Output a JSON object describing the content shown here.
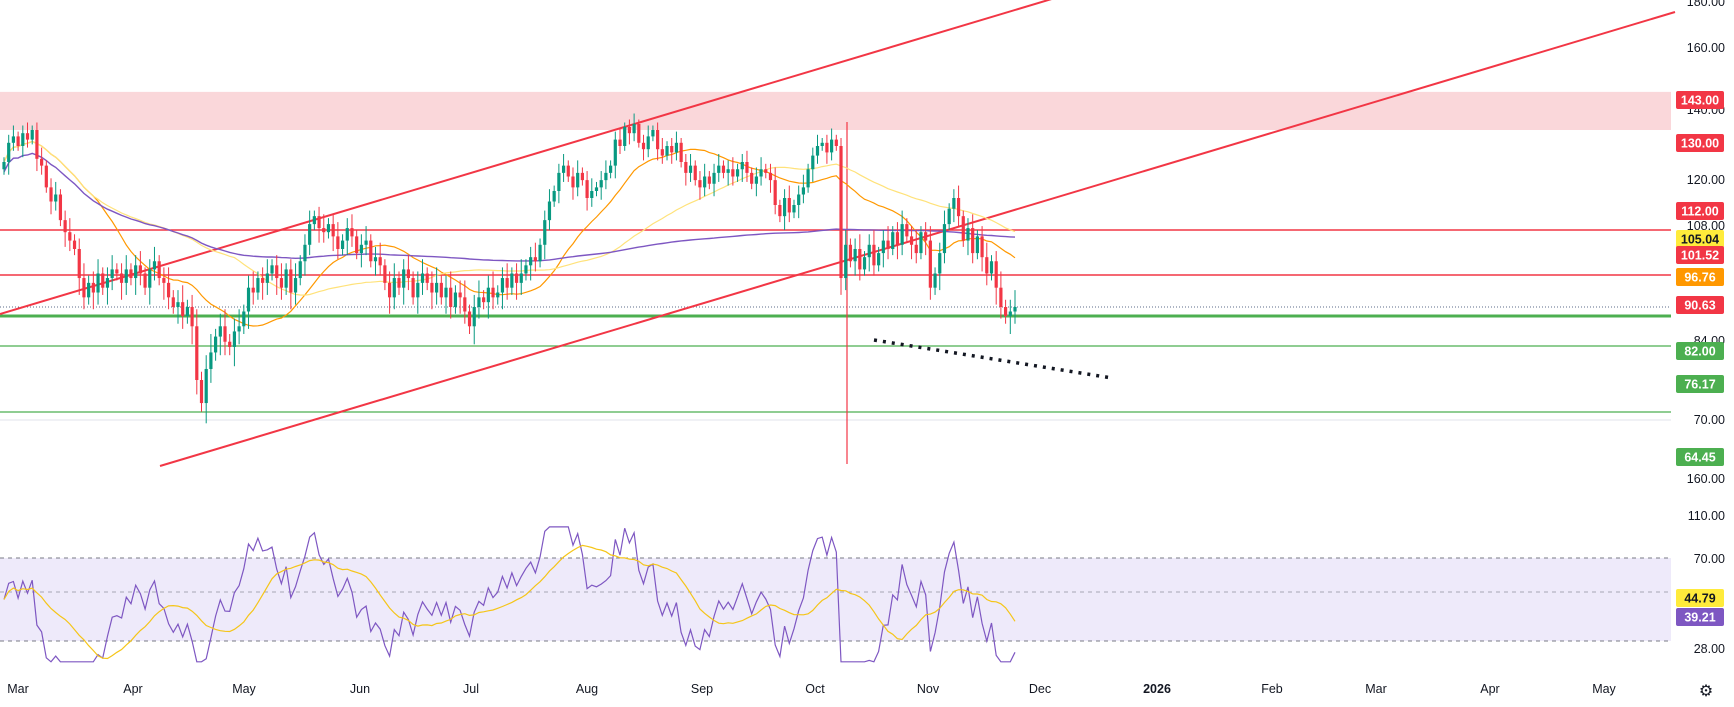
{
  "chart_data": {
    "type": "candlestick",
    "price_panel": {
      "axis_ticks": [
        "180.00",
        "160.00",
        "140.00",
        "120.00",
        "108.00",
        "84.00",
        "70.00"
      ],
      "level_badges": [
        {
          "label": "143.00",
          "color": "#f23645"
        },
        {
          "label": "130.00",
          "color": "#f23645"
        },
        {
          "label": "112.00",
          "color": "#f23645"
        },
        {
          "label": "105.04",
          "color": "#ffeb3b"
        },
        {
          "label": "101.52",
          "color": "#f23645"
        },
        {
          "label": "96.76",
          "color": "#ff9800"
        },
        {
          "label": "90.63",
          "color": "#f23645"
        },
        {
          "label": "82.00",
          "color": "#4caf50"
        },
        {
          "label": "76.17",
          "color": "#4caf50"
        },
        {
          "label": "64.45",
          "color": "#4caf50"
        }
      ]
    },
    "rsi_panel": {
      "axis_ticks": [
        "160.00",
        "110.00",
        "70.00",
        "28.00"
      ],
      "value_badges": [
        {
          "label": "44.79",
          "color": "#ffeb3b"
        },
        {
          "label": "39.21",
          "color": "#7e57c2"
        }
      ]
    },
    "x_ticks": [
      "Mar",
      "Apr",
      "May",
      "Jun",
      "Jul",
      "Aug",
      "Sep",
      "Oct",
      "Nov",
      "Dec",
      "2026",
      "Feb",
      "Mar",
      "Apr",
      "May"
    ],
    "colors": {
      "up": "#089981",
      "down": "#f23645",
      "resistance": "#f23645",
      "support": "#4caf50",
      "zone": "#f9d0d4",
      "ma_orange": "#ff9800",
      "ma_yellow": "#ffe27a",
      "ma_purple": "#7e57c2",
      "rsi_band": "#eeeafa"
    },
    "closes": [
      120,
      126,
      128,
      125,
      129,
      127,
      130,
      121,
      119,
      113,
      109,
      111,
      104,
      101,
      99,
      97,
      90,
      86,
      89,
      87,
      91,
      88,
      90,
      92,
      91,
      89,
      92,
      90,
      93,
      91,
      88,
      92,
      94,
      90,
      89,
      86,
      84,
      85,
      82,
      84,
      80,
      70,
      66,
      72,
      75,
      78,
      80,
      77,
      76,
      79,
      80,
      83,
      88,
      87,
      90,
      89,
      91,
      93,
      90,
      88,
      92,
      87,
      90,
      94,
      98,
      103,
      105,
      102,
      101,
      103,
      100,
      97,
      99,
      102,
      100,
      96,
      98,
      99,
      94,
      95,
      93,
      89,
      86,
      90,
      88,
      92,
      90,
      86,
      89,
      91,
      89,
      87,
      89,
      86,
      88,
      84,
      87,
      86,
      83,
      80,
      84,
      86,
      85,
      88,
      86,
      87,
      90,
      88,
      91,
      89,
      91,
      93,
      95,
      94,
      98,
      104,
      109,
      112,
      117,
      119,
      116,
      113,
      117,
      115,
      110,
      112,
      113,
      115,
      117,
      119,
      127,
      125,
      131,
      129,
      132,
      126,
      124,
      128,
      130,
      124,
      122,
      125,
      123,
      126,
      120,
      117,
      119,
      115,
      113,
      116,
      114,
      117,
      119,
      117,
      118,
      116,
      118,
      120,
      117,
      114,
      116,
      118,
      117,
      115,
      108,
      105,
      110,
      106,
      108,
      111,
      113,
      118,
      122,
      125,
      126,
      123,
      127,
      125,
      90,
      98,
      94,
      97,
      92,
      95,
      98,
      93,
      96,
      99,
      97,
      101,
      98,
      103,
      100,
      98,
      96,
      101,
      99,
      88,
      91,
      96,
      103,
      107,
      110,
      105,
      99,
      102,
      96,
      100,
      95,
      91,
      94,
      88,
      84,
      82,
      83,
      84
    ]
  }
}
